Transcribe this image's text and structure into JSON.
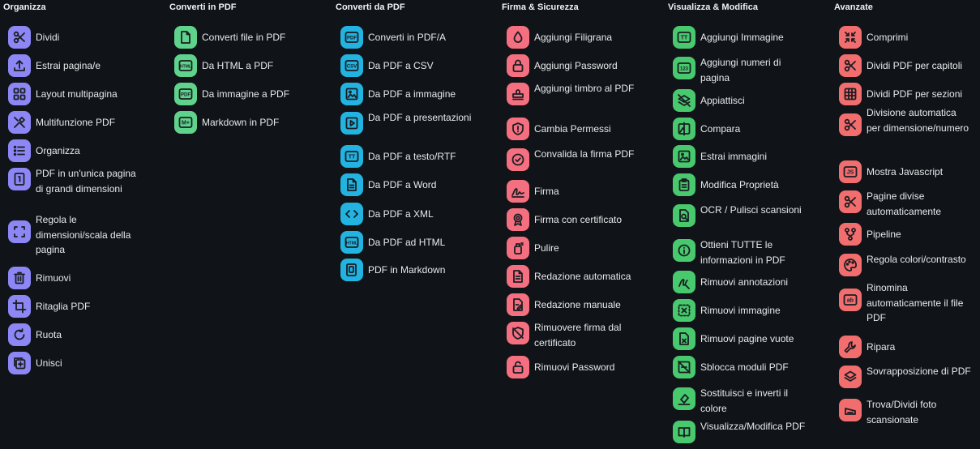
{
  "columns": [
    {
      "title": "Organizza",
      "color": "#8c87f5",
      "items": [
        {
          "label": "Dividi",
          "icon": "scissors-icon"
        },
        {
          "label": "Estrai pagina/e",
          "icon": "upload-icon"
        },
        {
          "label": "Layout multipagina",
          "icon": "grid-icon"
        },
        {
          "label": "Multifunzione PDF",
          "icon": "tools-icon"
        },
        {
          "label": "Organizza",
          "icon": "list-icon"
        },
        {
          "label": "PDF in un'unica pagina di grandi dimensioni",
          "icon": "single-page-icon"
        },
        {
          "label": "Regola le dimensioni/scala della pagina",
          "icon": "fullscreen-icon"
        },
        {
          "label": "Rimuovi",
          "icon": "trash-icon"
        },
        {
          "label": "Ritaglia PDF",
          "icon": "crop-icon"
        },
        {
          "label": "Ruota",
          "icon": "rotate-icon"
        },
        {
          "label": "Unisci",
          "icon": "merge-icon"
        }
      ]
    },
    {
      "title": "Converti in PDF",
      "color": "#5fd38c",
      "items": [
        {
          "label": "Converti file in PDF",
          "icon": "file-icon"
        },
        {
          "label": "Da HTML a PDF",
          "icon": "html-icon",
          "badge": "HTML"
        },
        {
          "label": "Da immagine a PDF",
          "icon": "image-pdf-icon",
          "badge": "PDF"
        },
        {
          "label": "Markdown in PDF",
          "icon": "markdown-icon",
          "badge": "M+"
        }
      ]
    },
    {
      "title": "Converti da PDF",
      "color": "#22b3e0",
      "items": [
        {
          "label": "Converti in PDF/A",
          "icon": "pdfa-icon",
          "badge": "PDF"
        },
        {
          "label": "Da PDF a CSV",
          "icon": "csv-icon",
          "badge": "CSV"
        },
        {
          "label": "Da PDF a immagine",
          "icon": "image-icon"
        },
        {
          "label": "Da PDF a presentazioni",
          "icon": "presentation-icon"
        },
        {
          "label": "Da PDF a testo/RTF",
          "icon": "text-icon",
          "badge": "TT"
        },
        {
          "label": "Da PDF a Word",
          "icon": "word-icon"
        },
        {
          "label": "Da PDF a XML",
          "icon": "code-icon"
        },
        {
          "label": "Da PDF ad HTML",
          "icon": "html-icon",
          "badge": "HTML"
        },
        {
          "label": "PDF in Markdown",
          "icon": "markdown-icon"
        }
      ]
    },
    {
      "title": "Firma & Sicurezza",
      "color": "#f47080",
      "items": [
        {
          "label": "Aggiungi Filigrana",
          "icon": "droplet-icon"
        },
        {
          "label": "Aggiungi Password",
          "icon": "lock-icon"
        },
        {
          "label": "Aggiungi timbro al PDF",
          "icon": "stamp-icon"
        },
        {
          "label": "Cambia Permessi",
          "icon": "shield-icon"
        },
        {
          "label": "Convalida la firma PDF",
          "icon": "verified-icon"
        },
        {
          "label": "Firma",
          "icon": "signature-icon"
        },
        {
          "label": "Firma con certificato",
          "icon": "certificate-icon"
        },
        {
          "label": "Pulire",
          "icon": "spray-icon"
        },
        {
          "label": "Redazione automatica",
          "icon": "auto-redact-icon"
        },
        {
          "label": "Redazione manuale",
          "icon": "manual-redact-icon"
        },
        {
          "label": "Rimuovere firma dal certificato",
          "icon": "remove-cert-icon"
        },
        {
          "label": "Rimuovi Password",
          "icon": "unlock-icon"
        }
      ]
    },
    {
      "title": "Visualizza & Modifica",
      "color": "#48c96e",
      "items": [
        {
          "label": "Aggiungi Immagine",
          "icon": "add-text-icon",
          "badge": "TT"
        },
        {
          "label": "Aggiungi numeri di pagina",
          "icon": "numbers-icon",
          "badge": "123"
        },
        {
          "label": "Appiattisci",
          "icon": "layers-off-icon"
        },
        {
          "label": "Compara",
          "icon": "compare-icon"
        },
        {
          "label": "Estrai immagini",
          "icon": "image-icon"
        },
        {
          "label": "Modifica Proprietà",
          "icon": "clipboard-icon"
        },
        {
          "label": "OCR / Pulisci scansioni",
          "icon": "ocr-icon"
        },
        {
          "label": "Ottieni TUTTE le informazioni in PDF",
          "icon": "info-icon"
        },
        {
          "label": "Rimuovi annotazioni",
          "icon": "annotation-icon"
        },
        {
          "label": "Rimuovi immagine",
          "icon": "remove-image-icon"
        },
        {
          "label": "Rimuovi pagine vuote",
          "icon": "remove-blank-icon"
        },
        {
          "label": "Sblocca moduli PDF",
          "icon": "unlock-form-icon"
        },
        {
          "label": "Sostituisci e inverti il colore",
          "icon": "format-color-icon"
        },
        {
          "label": "Visualizza/Modifica PDF",
          "icon": "book-icon"
        }
      ]
    },
    {
      "title": "Avanzate",
      "color": "#f26d6d",
      "items": [
        {
          "label": "Comprimi",
          "icon": "compress-icon"
        },
        {
          "label": "Dividi PDF per capitoli",
          "icon": "scissors-icon"
        },
        {
          "label": "Dividi PDF per sezioni",
          "icon": "table-icon"
        },
        {
          "label": "Divisione automatica per dimensione/numero",
          "icon": "scissors-icon"
        },
        {
          "label": "Mostra Javascript",
          "icon": "javascript-icon",
          "badge": "JS"
        },
        {
          "label": "Pagine divise automaticamente",
          "icon": "scissors-icon"
        },
        {
          "label": "Pipeline",
          "icon": "pipeline-icon"
        },
        {
          "label": "Regola colori/contrasto",
          "icon": "palette-icon"
        },
        {
          "label": "Rinomina automaticamente il file PDF",
          "icon": "rename-icon",
          "badge": "ab"
        },
        {
          "label": "Ripara",
          "icon": "wrench-icon"
        },
        {
          "label": "Sovrapposizione di PDF",
          "icon": "layers-icon"
        },
        {
          "label": "Trova/Dividi foto scansionate",
          "icon": "scanner-icon"
        }
      ]
    }
  ]
}
